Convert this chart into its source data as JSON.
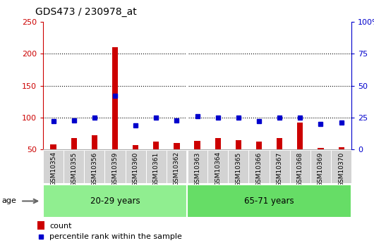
{
  "title": "GDS473 / 230978_at",
  "samples": [
    "GSM10354",
    "GSM10355",
    "GSM10356",
    "GSM10359",
    "GSM10360",
    "GSM10361",
    "GSM10362",
    "GSM10363",
    "GSM10364",
    "GSM10365",
    "GSM10366",
    "GSM10367",
    "GSM10368",
    "GSM10369",
    "GSM10370"
  ],
  "count_values": [
    58,
    68,
    72,
    210,
    57,
    62,
    60,
    63,
    68,
    65,
    62,
    68,
    92,
    52,
    53
  ],
  "percentile_values": [
    22,
    23,
    25,
    42,
    19,
    25,
    23,
    26,
    25,
    25,
    22,
    25,
    25,
    20,
    21
  ],
  "groups": [
    {
      "label": "20-29 years",
      "start": 0,
      "end": 7,
      "color": "#90EE90"
    },
    {
      "label": "65-71 years",
      "start": 7,
      "end": 15,
      "color": "#66DD66"
    }
  ],
  "group_label": "age",
  "ylim_left": [
    50,
    250
  ],
  "ylim_right": [
    0,
    100
  ],
  "yticks_left": [
    50,
    100,
    150,
    200,
    250
  ],
  "yticks_right": [
    0,
    25,
    50,
    75,
    100
  ],
  "left_axis_color": "#CC0000",
  "right_axis_color": "#0000CC",
  "bar_color_count": "#CC0000",
  "bar_color_pct": "#0000CC",
  "background_color": "#FFFFFF",
  "dotted_line_color": "#000000",
  "figsize": [
    5.3,
    3.45
  ],
  "dpi": 100
}
